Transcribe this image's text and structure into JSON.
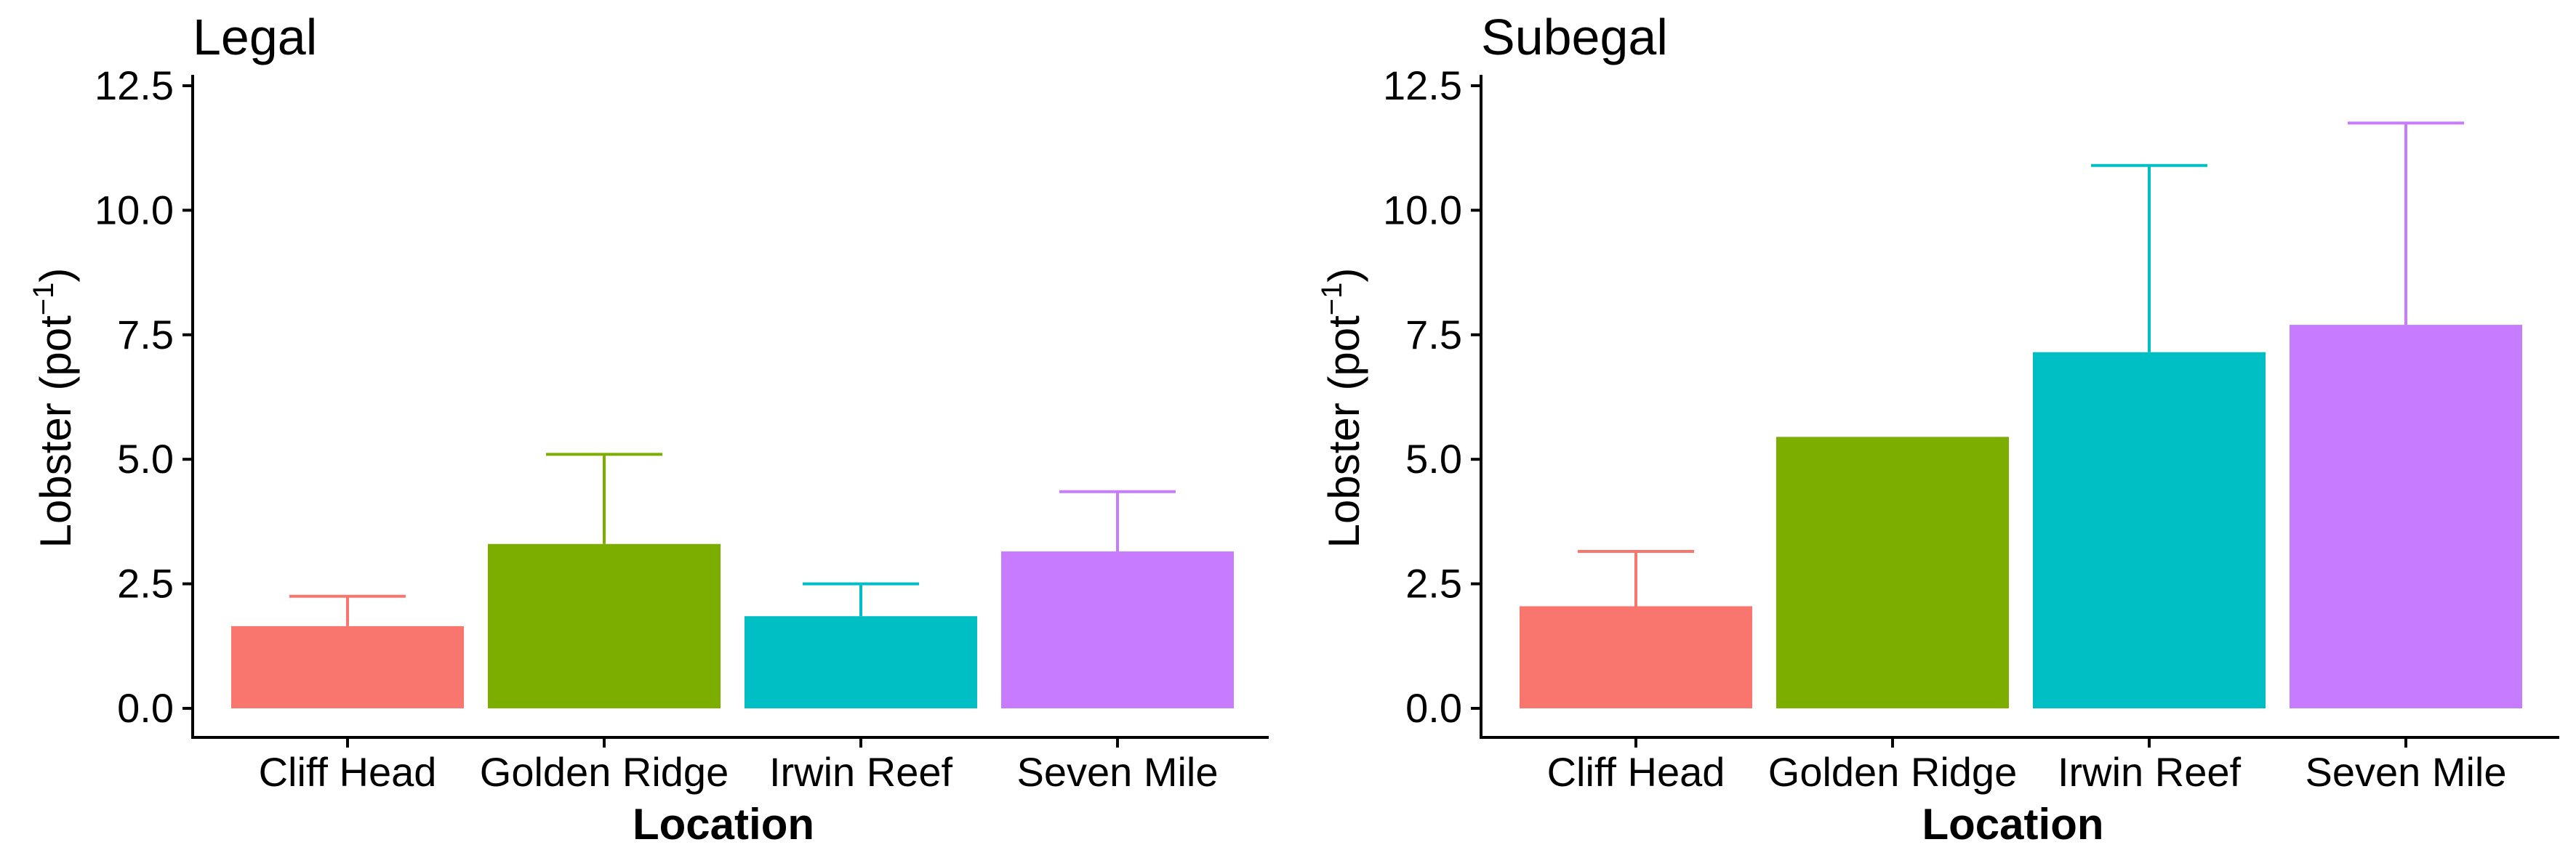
{
  "chart_data": [
    {
      "type": "bar",
      "title": "Legal",
      "xlabel": "Location",
      "ylabel_main": "Lobster (pot",
      "ylabel_superscript": "−1",
      "ylabel_close": ")",
      "categories": [
        "Cliff Head",
        "Golden Ridge",
        "Irwin Reef",
        "Seven Mile"
      ],
      "values": [
        1.65,
        3.3,
        1.85,
        3.15
      ],
      "error_upper": [
        2.25,
        5.1,
        2.5,
        4.35
      ],
      "colors": [
        "#F8766D",
        "#7CAE00",
        "#00BFC4",
        "#C77CFF"
      ],
      "ylim": [
        0,
        12.5
      ],
      "yticks": [
        "0.0",
        "2.5",
        "5.0",
        "7.5",
        "10.0",
        "12.5"
      ],
      "ytick_values": [
        0,
        2.5,
        5,
        7.5,
        10,
        12.5
      ],
      "grid": false
    },
    {
      "type": "bar",
      "title": "Subegal",
      "xlabel": "Location",
      "ylabel_main": "Lobster (pot",
      "ylabel_superscript": "−1",
      "ylabel_close": ")",
      "categories": [
        "Cliff Head",
        "Golden Ridge",
        "Irwin Reef",
        "Seven Mile"
      ],
      "values": [
        2.05,
        5.45,
        7.15,
        7.7
      ],
      "error_upper": [
        3.15,
        null,
        10.9,
        11.75
      ],
      "colors": [
        "#F8766D",
        "#7CAE00",
        "#00BFC4",
        "#C77CFF"
      ],
      "ylim": [
        0,
        12.5
      ],
      "yticks": [
        "0.0",
        "2.5",
        "5.0",
        "7.5",
        "10.0",
        "12.5"
      ],
      "ytick_values": [
        0,
        2.5,
        5,
        7.5,
        10,
        12.5
      ],
      "grid": false
    }
  ]
}
